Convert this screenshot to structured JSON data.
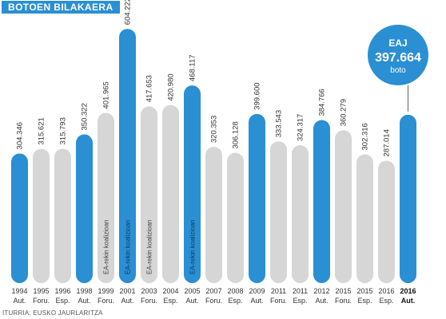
{
  "title": "BOTOEN BILAKAERA",
  "source": "ITURRIA: EUSKO JAURLARITZA",
  "colors": {
    "highlight": "#2b8fd3",
    "muted": "#d6d6d6",
    "text": "#333333"
  },
  "callout": {
    "party": "EAJ",
    "value": "397.664",
    "unit": "boto"
  },
  "chart_data": {
    "type": "bar",
    "title": "BOTOEN BILAKAERA",
    "xlabel": "",
    "ylabel": "",
    "ylim": [
      0,
      620000
    ],
    "categories": [
      "1994 Aut.",
      "1995 Foru.",
      "1996 Esp.",
      "1998 Aut.",
      "1999 Foru.",
      "2001 Aut.",
      "2003 Foru.",
      "2004 Esp.",
      "2005 Aut.",
      "2007 Foru.",
      "2008 Esp.",
      "2009 Aut.",
      "2011 Foru.",
      "2011 Esp.",
      "2012 Aut.",
      "2015 Foru.",
      "2015 Esp.",
      "2016 Esp.",
      "2016 Aut."
    ],
    "years": [
      "1994",
      "1995",
      "1996",
      "1998",
      "1999",
      "2001",
      "2003",
      "2004",
      "2005",
      "2007",
      "2008",
      "2009",
      "2011",
      "2011",
      "2012",
      "2015",
      "2015",
      "2016",
      "2016"
    ],
    "types": [
      "Aut.",
      "Foru.",
      "Esp.",
      "Aut.",
      "Foru.",
      "Aut.",
      "Foru.",
      "Esp.",
      "Aut.",
      "Foru.",
      "Esp.",
      "Aut.",
      "Foru.",
      "Esp.",
      "Aut.",
      "Foru.",
      "Esp.",
      "Esp.",
      "Aut."
    ],
    "values": [
      304346,
      315621,
      315793,
      350322,
      401965,
      604222,
      417653,
      420980,
      468117,
      320353,
      306128,
      399600,
      333543,
      324317,
      384766,
      360279,
      302316,
      287014,
      397664
    ],
    "labels": [
      "304.346",
      "315.621",
      "315.793",
      "350.322",
      "401.965",
      "604.222",
      "417.653",
      "420.980",
      "468.117",
      "320.353",
      "306.128",
      "399.600",
      "333.543",
      "324.317",
      "384.766",
      "360.279",
      "302.316",
      "287.014",
      ""
    ],
    "highlighted": [
      true,
      false,
      false,
      true,
      false,
      true,
      false,
      false,
      true,
      false,
      false,
      true,
      false,
      false,
      true,
      false,
      false,
      false,
      true
    ],
    "annotations": [
      "",
      "",
      "",
      "",
      "EA-rekin koalizioan",
      "EA-rekin koalizioan",
      "EA-rekin koalizioan",
      "",
      "EA-rekin koalizioan",
      "",
      "",
      "",
      "",
      "",
      "",
      "",
      "",
      "",
      ""
    ]
  }
}
